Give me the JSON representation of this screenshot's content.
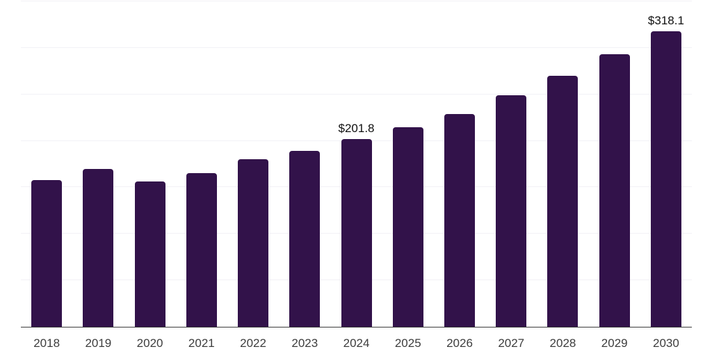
{
  "chart_data": {
    "type": "bar",
    "title": "",
    "xlabel": "",
    "ylabel": "",
    "categories": [
      "2018",
      "2019",
      "2020",
      "2021",
      "2022",
      "2023",
      "2024",
      "2025",
      "2026",
      "2027",
      "2028",
      "2029",
      "2030"
    ],
    "values": [
      158,
      170,
      156,
      165,
      180,
      189,
      201.8,
      215,
      229,
      249,
      270,
      293,
      318.1
    ],
    "data_labels": [
      "",
      "",
      "",
      "",
      "",
      "",
      "$201.8",
      "",
      "",
      "",
      "",
      "",
      "$318.1"
    ],
    "ylim": [
      0,
      350
    ],
    "gridline_step": 50,
    "grid": true,
    "legend": false,
    "colors": {
      "bar": "#32124a",
      "gridline": "#f2f1f6",
      "axis_line": "#3b3b3b",
      "tick_label": "#3d3d3d",
      "data_label": "#0f0f0f",
      "background": "#ffffff"
    }
  }
}
